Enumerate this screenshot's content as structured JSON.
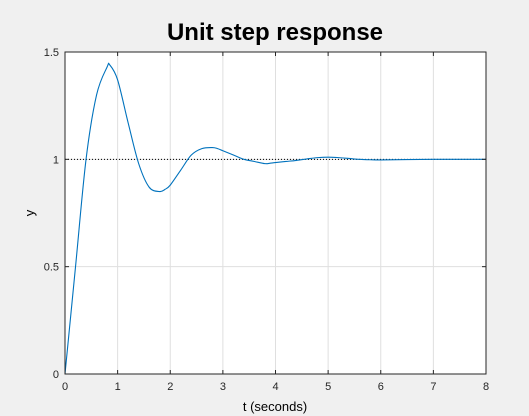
{
  "chart_data": {
    "type": "line",
    "title": "Unit step response",
    "xlabel": "t (seconds)",
    "ylabel": "y",
    "xlim": [
      0,
      8
    ],
    "ylim": [
      0,
      1.5
    ],
    "x_ticks": [
      "0",
      "1",
      "2",
      "3",
      "4",
      "5",
      "6",
      "7",
      "8"
    ],
    "y_ticks": [
      "0",
      "0.5",
      "1",
      "1.5"
    ],
    "grid": true,
    "reference_line": {
      "y": 1,
      "style": "dotted",
      "color": "#000000"
    },
    "series": [
      {
        "color": "#0072BD",
        "x": [
          0,
          0.2,
          0.4,
          0.6,
          0.8,
          0.85,
          1.0,
          1.2,
          1.4,
          1.6,
          1.8,
          1.9,
          2.0,
          2.2,
          2.4,
          2.6,
          2.8,
          2.9,
          3.0,
          3.2,
          3.4,
          3.6,
          3.8,
          3.9,
          4.0,
          4.2,
          4.4,
          4.6,
          4.8,
          5.0,
          5.2,
          5.4,
          5.6,
          5.8,
          6.0,
          6.5,
          7.0,
          7.5,
          8.0
        ],
        "values": [
          0,
          0.5,
          1.0,
          1.3,
          1.43,
          1.44,
          1.37,
          1.17,
          0.98,
          0.87,
          0.85,
          0.86,
          0.88,
          0.95,
          1.02,
          1.05,
          1.055,
          1.05,
          1.04,
          1.02,
          1.0,
          0.99,
          0.98,
          0.982,
          0.985,
          0.99,
          0.995,
          1.002,
          1.008,
          1.01,
          1.008,
          1.004,
          1.0,
          0.998,
          0.997,
          0.999,
          1.0,
          1.0,
          1.0
        ]
      }
    ]
  }
}
